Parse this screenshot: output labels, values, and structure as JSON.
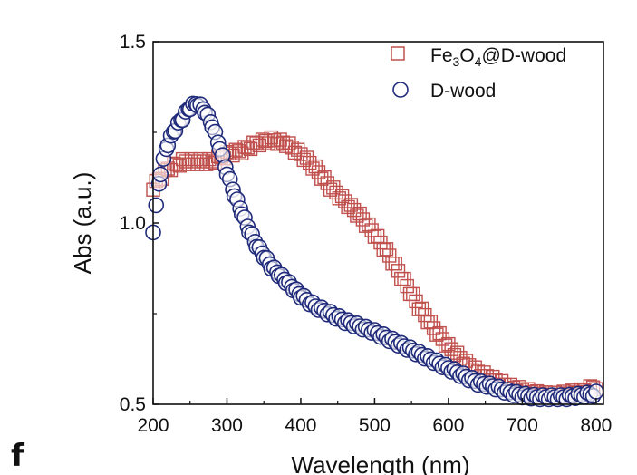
{
  "panel_label": "f",
  "colors": {
    "fe3o4": "#c0504d",
    "dwood": "#1f2a7a",
    "axis": "#111111"
  },
  "legend": {
    "fe3o4": {
      "base": "Fe",
      "sub1": "3",
      "mid": "O",
      "sub2": "4",
      "rest": "@D-wood",
      "marker": "square"
    },
    "dwood": {
      "label": "D-wood",
      "marker": "circle"
    }
  },
  "chart_data": {
    "type": "scatter",
    "title": "",
    "xlabel": "Wavelength (nm)",
    "ylabel": "Abs (a.u.)",
    "xlim": [
      200,
      810
    ],
    "ylim": [
      0.5,
      1.5
    ],
    "xticks": [
      "200",
      "300",
      "400",
      "500",
      "600",
      "700",
      "800"
    ],
    "yticks": [
      "0.5",
      "1.0",
      "1.5"
    ],
    "series": [
      {
        "name": "Fe3O4@D-wood",
        "marker": "square",
        "x": [
          200,
          220,
          240,
          260,
          280,
          300,
          320,
          340,
          360,
          380,
          400,
          420,
          440,
          460,
          480,
          500,
          520,
          540,
          560,
          580,
          600,
          620,
          640,
          660,
          680,
          700,
          720,
          740,
          760,
          780,
          800
        ],
        "y": [
          1.1,
          1.15,
          1.17,
          1.17,
          1.17,
          1.19,
          1.2,
          1.22,
          1.23,
          1.22,
          1.19,
          1.15,
          1.1,
          1.06,
          1.02,
          0.97,
          0.91,
          0.84,
          0.77,
          0.71,
          0.66,
          0.62,
          0.59,
          0.57,
          0.55,
          0.54,
          0.53,
          0.525,
          0.53,
          0.535,
          0.55
        ]
      },
      {
        "name": "D-wood",
        "marker": "circle",
        "x": [
          200,
          210,
          220,
          230,
          240,
          250,
          260,
          270,
          280,
          290,
          300,
          310,
          320,
          330,
          340,
          350,
          360,
          370,
          380,
          390,
          400,
          420,
          440,
          460,
          480,
          500,
          520,
          540,
          560,
          580,
          600,
          620,
          640,
          660,
          680,
          700,
          720,
          740,
          760,
          780,
          800
        ],
        "y": [
          0.98,
          1.14,
          1.22,
          1.26,
          1.29,
          1.32,
          1.33,
          1.31,
          1.27,
          1.21,
          1.14,
          1.08,
          1.03,
          0.98,
          0.94,
          0.91,
          0.88,
          0.86,
          0.84,
          0.82,
          0.8,
          0.77,
          0.75,
          0.73,
          0.715,
          0.7,
          0.68,
          0.66,
          0.64,
          0.62,
          0.6,
          0.58,
          0.56,
          0.55,
          0.535,
          0.525,
          0.52,
          0.52,
          0.52,
          0.525,
          0.53
        ]
      }
    ]
  }
}
